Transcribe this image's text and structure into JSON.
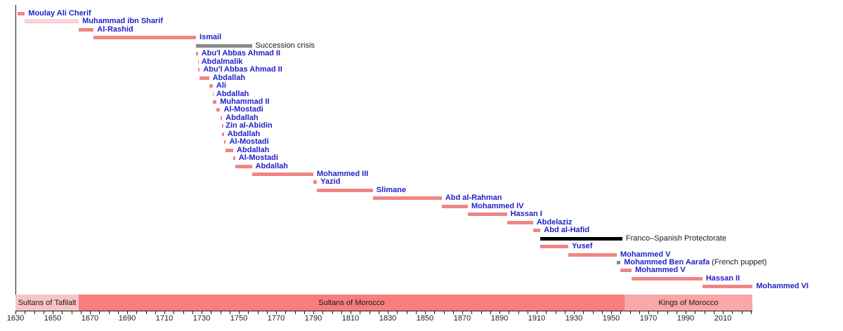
{
  "chart_data": {
    "type": "timeline",
    "axis": {
      "start": 1630,
      "end": 2026,
      "minor_tick_step": 5,
      "tick_label_years": [
        1630,
        1650,
        1670,
        1690,
        1710,
        1730,
        1750,
        1770,
        1790,
        1810,
        1830,
        1850,
        1870,
        1890,
        1910,
        1930,
        1950,
        1970,
        1990,
        2010
      ]
    },
    "colors": {
      "reign_bar": "#F08585",
      "striped_bar_dark": "#F3AAAA",
      "striped_bar_light": "#FBE0E0",
      "gray_bar": "#8A8A8A",
      "black_bar": "#000000",
      "era_tafilalt": "#FBC4C4",
      "era_morocco": "#F97D7D",
      "era_kings": "#FAA7A7",
      "link_label": "#1F1FC8",
      "plain_label": "#1A1A1A"
    },
    "rulers": [
      {
        "label": "Moulay Ali Cherif",
        "start": 1631,
        "end": 1635,
        "bar": "salmon",
        "label_style": "link"
      },
      {
        "label": "Muhammad ibn Sharif",
        "start": 1635,
        "end": 1664,
        "bar": "striped",
        "label_style": "link"
      },
      {
        "label": "Al-Rashid",
        "start": 1664,
        "end": 1672,
        "bar": "salmon",
        "label_style": "link"
      },
      {
        "label": "Ismail",
        "start": 1672,
        "end": 1727,
        "bar": "salmon",
        "label_style": "link"
      },
      {
        "label": "Succession crisis",
        "start": 1727,
        "end": 1757,
        "bar": "gray",
        "label_style": "plain"
      },
      {
        "label": "Abu'l Abbas Ahmad II",
        "start": 1727,
        "end": 1728,
        "bar": "salmon",
        "label_style": "link"
      },
      {
        "label": "Abdalmalik",
        "start": 1728,
        "end": 1728,
        "bar": "salmon",
        "label_style": "link"
      },
      {
        "label": "Abu'l Abbas Ahmad II",
        "start": 1728,
        "end": 1729,
        "bar": "salmon",
        "label_style": "link"
      },
      {
        "label": "Abdallah",
        "start": 1729,
        "end": 1734,
        "bar": "salmon",
        "label_style": "link"
      },
      {
        "label": "Ali",
        "start": 1734,
        "end": 1736,
        "bar": "salmon",
        "label_style": "link"
      },
      {
        "label": "Abdallah",
        "start": 1736,
        "end": 1736,
        "bar": "salmon",
        "label_style": "link"
      },
      {
        "label": "Muhammad II",
        "start": 1736,
        "end": 1738,
        "bar": "salmon",
        "label_style": "link"
      },
      {
        "label": "Al-Mostadi",
        "start": 1738,
        "end": 1740,
        "bar": "salmon",
        "label_style": "link"
      },
      {
        "label": "Abdallah",
        "start": 1740,
        "end": 1741,
        "bar": "salmon",
        "label_style": "link"
      },
      {
        "label": "Zin al-Abidin",
        "start": 1741,
        "end": 1741,
        "bar": "salmon",
        "label_style": "link"
      },
      {
        "label": "Abdallah",
        "start": 1741,
        "end": 1742,
        "bar": "salmon",
        "label_style": "link"
      },
      {
        "label": "Al-Mostadi",
        "start": 1742,
        "end": 1743,
        "bar": "salmon",
        "label_style": "link"
      },
      {
        "label": "Abdallah",
        "start": 1743,
        "end": 1747,
        "bar": "salmon",
        "label_style": "link"
      },
      {
        "label": "Al-Mostadi",
        "start": 1747,
        "end": 1748,
        "bar": "salmon",
        "label_style": "link"
      },
      {
        "label": "Abdallah",
        "start": 1748,
        "end": 1757,
        "bar": "salmon",
        "label_style": "link"
      },
      {
        "label": "Mohammed III",
        "start": 1757,
        "end": 1790,
        "bar": "salmon",
        "label_style": "link"
      },
      {
        "label": "Yazid",
        "start": 1790,
        "end": 1792,
        "bar": "salmon",
        "label_style": "link"
      },
      {
        "label": "Slimane",
        "start": 1792,
        "end": 1822,
        "bar": "salmon",
        "label_style": "link"
      },
      {
        "label": "Abd al-Rahman",
        "start": 1822,
        "end": 1859,
        "bar": "salmon",
        "label_style": "link"
      },
      {
        "label": "Mohammed IV",
        "start": 1859,
        "end": 1873,
        "bar": "salmon",
        "label_style": "link"
      },
      {
        "label": "Hassan I",
        "start": 1873,
        "end": 1894,
        "bar": "salmon",
        "label_style": "link"
      },
      {
        "label": "Abdelaziz",
        "start": 1894,
        "end": 1908,
        "bar": "salmon",
        "label_style": "link"
      },
      {
        "label": "Abd al-Hafid",
        "start": 1908,
        "end": 1912,
        "bar": "salmon",
        "label_style": "link"
      },
      {
        "label": "Franco–Spanish Protectorate",
        "start": 1912,
        "end": 1956,
        "bar": "black",
        "label_style": "plain"
      },
      {
        "label": "Yusef",
        "start": 1912,
        "end": 1927,
        "bar": "salmon",
        "label_style": "link"
      },
      {
        "label": "Mohammed V",
        "start": 1927,
        "end": 1953,
        "bar": "salmon",
        "label_style": "link"
      },
      {
        "label": "Mohammed Ben Aarafa",
        "suffix": " (French puppet)",
        "start": 1953,
        "end": 1955,
        "bar": "gray",
        "label_style": "link"
      },
      {
        "label": "Mohammed V",
        "start": 1955,
        "end": 1961,
        "bar": "salmon",
        "label_style": "link"
      },
      {
        "label": "Hassan II",
        "start": 1961,
        "end": 1999,
        "bar": "salmon",
        "label_style": "link"
      },
      {
        "label": "Mohammed VI",
        "start": 1999,
        "end": 2026,
        "bar": "salmon",
        "label_style": "link"
      }
    ],
    "eras": [
      {
        "label": "Sultans of Tafilalt",
        "start": 1630,
        "end": 1664,
        "color_key": "era_tafilalt"
      },
      {
        "label": "Sultans of Morocco",
        "start": 1664,
        "end": 1957,
        "color_key": "era_morocco"
      },
      {
        "label": "Kings of Morocco",
        "start": 1957,
        "end": 2026,
        "color_key": "era_kings"
      }
    ]
  }
}
